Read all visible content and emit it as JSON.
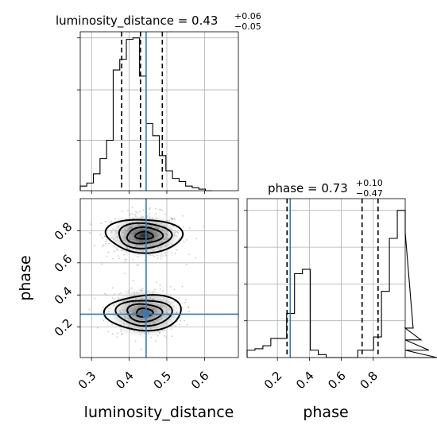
{
  "chart_data": {
    "type": "corner",
    "truth_color": "#3a78b0",
    "parameters": [
      "luminosity_distance",
      "phase"
    ],
    "truth": {
      "luminosity_distance": 0.445,
      "phase": 0.28
    },
    "panels": {
      "luminosity_distance_hist": {
        "title_main": "luminosity_distance = 0.43",
        "title_plus": "+0.06",
        "title_minus": "−0.05",
        "xlim": [
          0.27,
          0.69
        ],
        "x_ticks": [
          0.3,
          0.4,
          0.5,
          0.6
        ],
        "bin_width": 0.0175,
        "bin_start": 0.27,
        "counts": [
          0.03,
          0.05,
          0.11,
          0.21,
          0.33,
          0.79,
          0.86,
          0.99,
          1.0,
          0.75,
          0.44,
          0.36,
          0.23,
          0.13,
          0.08,
          0.06,
          0.03,
          0.02,
          0.01,
          0.0
        ],
        "quantiles": [
          0.38,
          0.43,
          0.488
        ],
        "truth": 0.445
      },
      "phase_hist": {
        "title_main": "phase = 0.73",
        "title_plus": "+0.10",
        "title_minus": "−0.47",
        "xlim": [
          0.01,
          1.0
        ],
        "x_ticks": [
          0.2,
          0.4,
          0.6,
          0.8
        ],
        "bin_width": 0.0495,
        "bin_start": 0.01,
        "counts": [
          0.05,
          0.06,
          0.08,
          0.13,
          0.13,
          0.3,
          0.57,
          0.6,
          0.05,
          0.02,
          0.0,
          0.0,
          0.0,
          0.0,
          0.05,
          0.05,
          0.14,
          0.45,
          0.81,
          1.0,
          0.85,
          0.2,
          0.12,
          0.05,
          0.0
        ],
        "quantiles": [
          0.26,
          0.73,
          0.83
        ],
        "truth": 0.28
      },
      "joint": {
        "xlim": [
          0.27,
          0.69
        ],
        "ylim": [
          0.01,
          1.0
        ],
        "x_ticks": [
          0.3,
          0.4,
          0.5,
          0.6
        ],
        "y_ticks": [
          0.2,
          0.4,
          0.6,
          0.8
        ],
        "modes": [
          {
            "x": 0.44,
            "y": 0.77,
            "sx": 0.05,
            "sy": 0.07,
            "weight": 0.6
          },
          {
            "x": 0.44,
            "y": 0.29,
            "sx": 0.05,
            "sy": 0.08,
            "weight": 0.4
          }
        ]
      }
    },
    "xlabels": [
      "luminosity_distance",
      "phase"
    ],
    "ylabel": "phase"
  }
}
